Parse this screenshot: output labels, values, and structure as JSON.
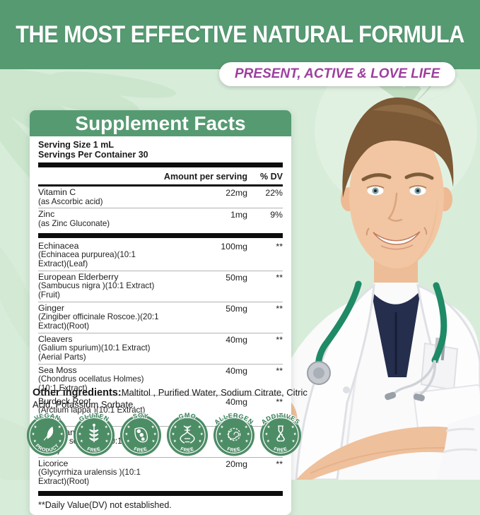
{
  "page": {
    "headline": "THE MOST EFFECTIVE NATURAL FORMULA",
    "tagline": "PRESENT, ACTIVE & LOVE LIFE"
  },
  "colors": {
    "banner_green": "#569a72",
    "badge_green": "#4d8d66",
    "tagline_purple": "#9d3f9e",
    "background_green": "#d8ecda"
  },
  "supplement_facts": {
    "title": "Supplement Facts",
    "serving_size": "Serving Size 1 mL",
    "servings_per_container": "Servings Per Container 30",
    "columns": {
      "amount": "Amount per serving",
      "dv": "% DV"
    },
    "rows": [
      {
        "name": "Vitamin C",
        "detail": "(as Ascorbic acid)",
        "amount": "22mg",
        "dv": "22%",
        "thick_after": false
      },
      {
        "name": "Zinc",
        "detail": "(as Zinc Gluconate)",
        "amount": "1mg",
        "dv": "9%",
        "thick_after": true
      },
      {
        "name": "Echinacea",
        "detail": "(Echinacea purpurea)(10:1 Extract)(Leaf)",
        "amount": "100mg",
        "dv": "**",
        "thick_after": false
      },
      {
        "name": "European Elderberry",
        "detail": "(Sambucus nigra )(10:1 Extract)(Fruit)",
        "amount": "50mg",
        "dv": "**",
        "thick_after": false
      },
      {
        "name": "Ginger",
        "detail": "(Zingiber officinale Roscoe.)(20:1 Extract)(Root)",
        "amount": "50mg",
        "dv": "**",
        "thick_after": false
      },
      {
        "name": "Cleavers",
        "detail": "(Galium spurium)(10:1 Extract)(Aerial Parts)",
        "amount": "40mg",
        "dv": "**",
        "thick_after": false
      },
      {
        "name": "Sea Moss",
        "detail": "(Chondrus ocellatus Holmes)(10:1 Extract)",
        "amount": "40mg",
        "dv": "**",
        "thick_after": false
      },
      {
        "name": "Burdock Root",
        "detail": "(Arctium lappa )(10:1 Extract)(Root)",
        "amount": "40mg",
        "dv": "**",
        "thick_after": false
      },
      {
        "name": "American Cherry",
        "detail": "(Prunus serotina )(10:1 Extract)(Fruit)",
        "amount": "20mg",
        "dv": "**",
        "thick_after": false
      },
      {
        "name": "Licorice",
        "detail": "(Glycyrrhiza uralensis )(10:1 Extract)(Root)",
        "amount": "20mg",
        "dv": "**",
        "thick_after": false
      }
    ],
    "footnote": "**Daily Value(DV) not established."
  },
  "other_ingredients": {
    "label": "Other ingredients:",
    "text": "Maltitol , Purified Water, Sodium Citrate, Citric Acid, Potassium Sorbate."
  },
  "badges": [
    {
      "top": "VEGAN",
      "bottom": "PRODUCT",
      "icon": "leaf-icon"
    },
    {
      "top": "GLUTEN",
      "bottom": "FREE",
      "icon": "wheat-icon"
    },
    {
      "top": "SOY",
      "bottom": "FREE",
      "icon": "soybean-icon"
    },
    {
      "top": "GMO",
      "bottom": "FREE",
      "icon": "dna-icon"
    },
    {
      "top": "ALLERGEN",
      "bottom": "FREE",
      "icon": "allergen-icon"
    },
    {
      "top": "ADDITIVES",
      "bottom": "FREE",
      "icon": "flask-icon"
    }
  ]
}
